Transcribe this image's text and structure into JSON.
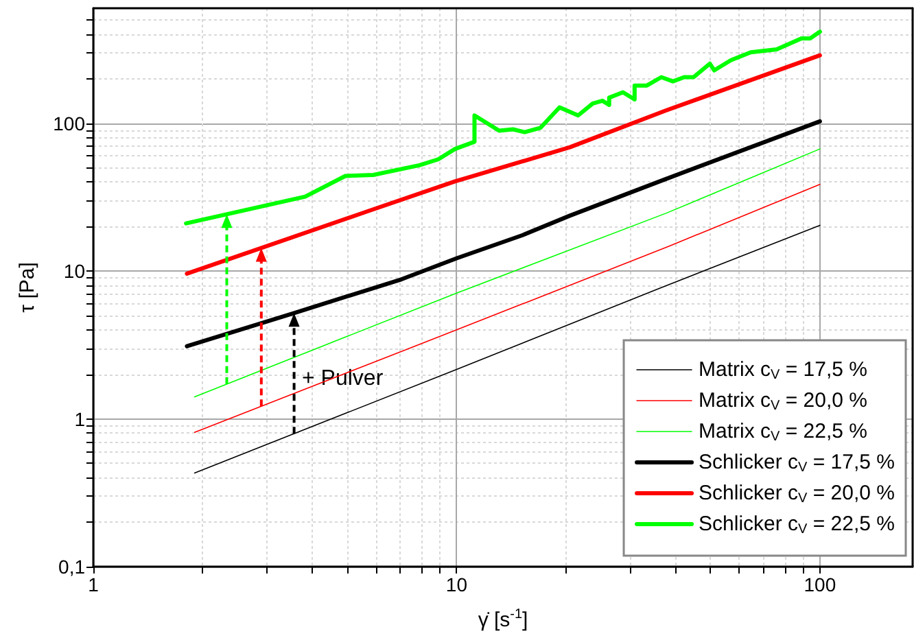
{
  "chart_data": {
    "type": "line",
    "xlabel": "γ̇ [s$^{-1}$]",
    "ylabel": "τ [Pa]",
    "log": "xy",
    "grid": true,
    "legend": "bottom right",
    "marker": "none",
    "line_style": "solid",
    "xlim": [
      1,
      180
    ],
    "ylim": [
      0.1,
      600
    ],
    "xticks": [
      1,
      {
        "value": 2,
        "label": null
      },
      {
        "value": 3,
        "label": null
      },
      {
        "value": 4,
        "label": null
      },
      {
        "value": 5,
        "label": null
      },
      {
        "value": 6,
        "label": null
      },
      {
        "value": 7,
        "label": null
      },
      {
        "value": 8,
        "label": null
      },
      {
        "value": 9,
        "label": null
      },
      10,
      {
        "value": 20,
        "label": null
      },
      {
        "value": 30,
        "label": null
      },
      {
        "value": 40,
        "label": null
      },
      {
        "value": 50,
        "label": null
      },
      {
        "value": 60,
        "label": null
      },
      {
        "value": 70,
        "label": null
      },
      {
        "value": 80,
        "label": null
      },
      {
        "value": 90,
        "label": null
      },
      100
    ],
    "yticks": [
      {
        "value": 0.1,
        "label": "0,1"
      },
      {
        "value": 0.2,
        "label": null
      },
      {
        "value": 0.3,
        "label": null
      },
      {
        "value": 0.4,
        "label": null
      },
      {
        "value": 0.5,
        "label": null
      },
      {
        "value": 0.6,
        "label": null
      },
      {
        "value": 0.7,
        "label": null
      },
      {
        "value": 0.8,
        "label": null
      },
      {
        "value": 0.9,
        "label": null
      },
      1,
      {
        "value": 2,
        "label": null
      },
      {
        "value": 3,
        "label": null
      },
      {
        "value": 4,
        "label": null
      },
      {
        "value": 5,
        "label": null
      },
      {
        "value": 6,
        "label": null
      },
      {
        "value": 7,
        "label": null
      },
      {
        "value": 8,
        "label": null
      },
      {
        "value": 9,
        "label": null
      },
      10,
      {
        "value": 20,
        "label": null
      },
      {
        "value": 30,
        "label": null
      },
      {
        "value": 40,
        "label": null
      },
      {
        "value": 50,
        "label": null
      },
      {
        "value": 60,
        "label": null
      },
      {
        "value": 70,
        "label": null
      },
      {
        "value": 80,
        "label": null
      },
      {
        "value": 90,
        "label": null
      },
      100,
      {
        "value": 200,
        "label": null
      },
      {
        "value": 300,
        "label": null
      },
      {
        "value": 400,
        "label": null
      },
      {
        "value": 500,
        "label": null
      }
    ],
    "annotations": [
      "+ Pulver"
    ],
    "series": [
      {
        "name": "Matrix c$_{V}$ = 17,5 %",
        "color": "#000000",
        "x": [
          1.9,
          10,
          36,
          100
        ],
        "values": [
          0.43,
          2.16,
          7.6,
          20.4
        ]
      },
      {
        "name": "Matrix c$_{V}$ = 20,0 %",
        "color": "#ff0000",
        "x": [
          1.9,
          10,
          38.6,
          100
        ],
        "values": [
          0.81,
          4.0,
          14.8,
          38.6
        ]
      },
      {
        "name": "Matrix c$_{V}$ = 22,5 %",
        "color": "#00ff00",
        "x": [
          1.9,
          10,
          37.7,
          100
        ],
        "values": [
          1.41,
          7.1,
          24.6,
          67
        ]
      },
      {
        "name": "Schlicker c$_{V}$ = 17,5 %",
        "color": "#000000",
        "x": [
          1.81,
          3.57,
          7.06,
          10,
          15.2,
          20.5,
          37.7,
          100
        ],
        "values": [
          3.1,
          5.2,
          8.8,
          12.2,
          17.5,
          23.7,
          42,
          103
        ]
      },
      {
        "name": "Schlicker c$_{V}$ = 20,0 %",
        "color": "#ff0000",
        "x": [
          1.81,
          5.67,
          9.9,
          20.5,
          37.7,
          100
        ],
        "values": [
          9.6,
          25.3,
          40.4,
          68.8,
          122,
          288
        ]
      },
      {
        "name": "Schlicker c$_{V}$ = 22,5 %",
        "color": "#00ff00",
        "x": [
          1.8,
          3.83,
          4.94,
          5.9,
          7.9,
          8.9,
          9.9,
          11.2,
          11.2,
          13.1,
          14.3,
          15.4,
          17.0,
          19.2,
          21.6,
          23.7,
          25.2,
          26.3,
          26.3,
          28.7,
          30.9,
          30.9,
          33.4,
          36.6,
          39.4,
          42.3,
          44.9,
          49.8,
          51.2,
          56.9,
          64.5,
          76,
          89,
          94,
          100
        ],
        "values": [
          21,
          31.9,
          44,
          44.7,
          52,
          57,
          67,
          75,
          113,
          89,
          91,
          87,
          93,
          128,
          113,
          136,
          142,
          133,
          149,
          162,
          145,
          180,
          180,
          205,
          192,
          205,
          205,
          253,
          228,
          267,
          302,
          316,
          375,
          375,
          416
        ]
      }
    ]
  }
}
